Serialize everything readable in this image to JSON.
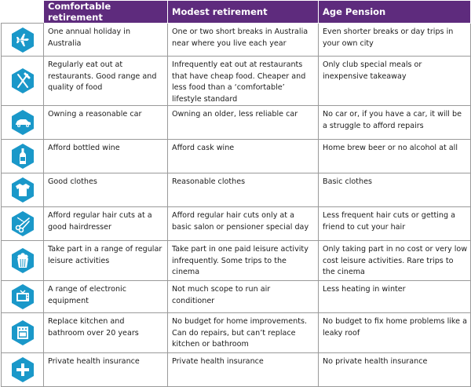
{
  "header": {
    "col1": "Comfortable retirement",
    "col2": "Modest retirement",
    "col3": "Age Pension"
  },
  "colors": {
    "header_bg": "#5e2b7d",
    "icon_bg": "#1a98c9",
    "grid": "#9a9a9a"
  },
  "rows": [
    {
      "icon": "airplane-icon",
      "comfortable": "One annual holiday in Australia",
      "modest": "One or two short breaks in Australia near where you live each year",
      "pension": "Even shorter breaks or day trips in your own city"
    },
    {
      "icon": "knife-fork-icon",
      "comfortable": "Regularly eat out at restaurants. Good range and quality of food",
      "modest": "Infrequently eat out at restaurants that have cheap food. Cheaper and less food than a ‘comfortable’ lifestyle standard",
      "pension": "Only club special meals or inexpensive takeaway"
    },
    {
      "icon": "car-icon",
      "comfortable": "Owning a reasonable car",
      "modest": "Owning an older, less reliable car",
      "pension": "No car or, if you have a car, it will be a struggle to afford repairs"
    },
    {
      "icon": "wine-bottle-icon",
      "comfortable": "Afford bottled wine",
      "modest": "Afford cask wine",
      "pension": "Home brew beer or no alcohol at all"
    },
    {
      "icon": "tshirt-icon",
      "comfortable": "Good clothes",
      "modest": "Reasonable clothes",
      "pension": "Basic clothes"
    },
    {
      "icon": "scissors-comb-icon",
      "comfortable": "Afford regular hair cuts at a good hairdresser",
      "modest": "Afford regular hair cuts only at a basic salon or pensioner special day",
      "pension": "Less frequent hair cuts or getting a friend to cut your hair"
    },
    {
      "icon": "popcorn-icon",
      "comfortable": "Take part in a range of regular leisure activities",
      "modest": "Take part in one paid leisure activity infrequently. Some trips to the cinema",
      "pension": "Only taking part in no cost or very low cost leisure activities. Rare trips to the cinema"
    },
    {
      "icon": "television-icon",
      "comfortable": "A range of electronic equipment",
      "modest": "Not much scope to run air conditioner",
      "pension": "Less heating in winter"
    },
    {
      "icon": "kitchen-oven-icon",
      "comfortable": "Replace kitchen and bathroom over 20 years",
      "modest": "No budget for home improvements. Can do repairs, but can’t replace kitchen or bathroom",
      "pension": "No budget to fix home problems like a leaky roof"
    },
    {
      "icon": "medical-cross-icon",
      "comfortable": "Private health insurance",
      "modest": "Private health insurance",
      "pension": "No private health insurance"
    }
  ]
}
